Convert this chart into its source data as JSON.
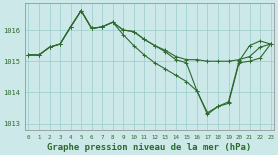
{
  "background_color": "#cce8e8",
  "line_color": "#2d6a2d",
  "grid_color": "#99cccc",
  "xlabel": "Graphe pression niveau de la mer (hPa)",
  "xlabel_fontsize": 6.5,
  "ylim": [
    1012.8,
    1016.85
  ],
  "xlim": [
    -0.3,
    23.3
  ],
  "yticks": [
    1013,
    1014,
    1015,
    1016
  ],
  "xticks": [
    0,
    1,
    2,
    3,
    4,
    5,
    6,
    7,
    8,
    9,
    10,
    11,
    12,
    13,
    14,
    15,
    16,
    17,
    18,
    19,
    20,
    21,
    22,
    23
  ],
  "series1_x": [
    0,
    1,
    2,
    3,
    4,
    5,
    6,
    7,
    8,
    9,
    10,
    11,
    12,
    13,
    14,
    15,
    16,
    17,
    18,
    19,
    20,
    21,
    22,
    23
  ],
  "series1_y": [
    1015.2,
    1015.2,
    1015.45,
    1015.55,
    1016.1,
    1016.62,
    1016.05,
    1016.1,
    1016.25,
    1016.0,
    1015.95,
    1015.7,
    1015.5,
    1015.35,
    1015.15,
    1015.05,
    1015.05,
    1015.0,
    1015.0,
    1015.0,
    1015.05,
    1015.15,
    1015.45,
    1015.55
  ],
  "series2_x": [
    0,
    1,
    2,
    3,
    4,
    5,
    6,
    7,
    8,
    9,
    10,
    11,
    12,
    13,
    14,
    15,
    16,
    17,
    18,
    19,
    20,
    21,
    22,
    23
  ],
  "series2_y": [
    1015.2,
    1015.2,
    1015.45,
    1015.55,
    1016.1,
    1016.62,
    1016.05,
    1016.1,
    1016.25,
    1015.85,
    1015.5,
    1015.2,
    1014.95,
    1014.75,
    1014.55,
    1014.35,
    1014.05,
    1013.35,
    1013.55,
    1013.7,
    1015.0,
    1015.5,
    1015.65,
    1015.55
  ],
  "series3_x": [
    0,
    1,
    2,
    3,
    4,
    5,
    6,
    7,
    8,
    9,
    10,
    11,
    12,
    13,
    14,
    15,
    16,
    17,
    18,
    19,
    20,
    21,
    22,
    23
  ],
  "series3_y": [
    1015.2,
    1015.2,
    1015.45,
    1015.55,
    1016.1,
    1016.62,
    1016.05,
    1016.1,
    1016.25,
    1016.0,
    1015.95,
    1015.7,
    1015.5,
    1015.3,
    1015.05,
    1014.95,
    1014.05,
    1013.3,
    1013.55,
    1013.65,
    1014.95,
    1015.0,
    1015.1,
    1015.55
  ]
}
